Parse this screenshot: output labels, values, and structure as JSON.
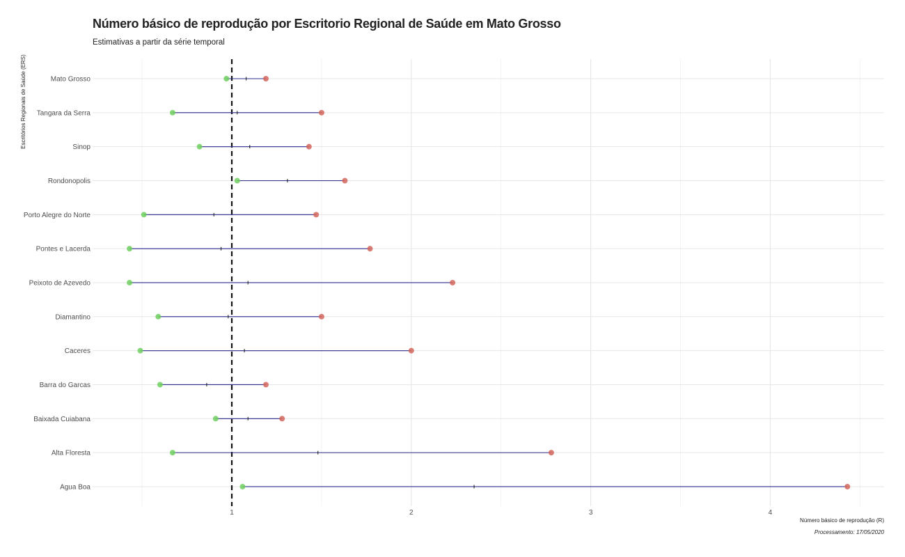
{
  "chart_data": {
    "type": "interval",
    "title": "Número básico de reprodução por Escritorio Regional de Saúde em Mato Grosso",
    "subtitle": "Estimativas a partir da série temporal",
    "xlabel": "Número básico de reprodução (R)",
    "ylabel": "Escritórios Regionais de Saúde (ERS)",
    "caption": "Processamento:  17/05/2020",
    "xlim": [
      0.25,
      4.65
    ],
    "xticks": [
      1,
      2,
      3,
      4
    ],
    "reference_line": 1,
    "grid": true,
    "colors": {
      "lower": "#6fcf5e",
      "upper": "#d2665c",
      "segment": "#2b2b8c",
      "reference": "#111111"
    },
    "series": [
      {
        "name": "Mato Grosso",
        "lower": 0.97,
        "estimate": 1.08,
        "upper": 1.19
      },
      {
        "name": "Tangara da Serra",
        "lower": 0.67,
        "estimate": 1.03,
        "upper": 1.5
      },
      {
        "name": "Sinop",
        "lower": 0.82,
        "estimate": 1.1,
        "upper": 1.43
      },
      {
        "name": "Rondonopolis",
        "lower": 1.03,
        "estimate": 1.31,
        "upper": 1.63
      },
      {
        "name": "Porto Alegre do Norte",
        "lower": 0.51,
        "estimate": 0.9,
        "upper": 1.47
      },
      {
        "name": "Pontes e Lacerda",
        "lower": 0.43,
        "estimate": 0.94,
        "upper": 1.77
      },
      {
        "name": "Peixoto de Azevedo",
        "lower": 0.43,
        "estimate": 1.09,
        "upper": 2.23
      },
      {
        "name": "Diamantino",
        "lower": 0.59,
        "estimate": 0.98,
        "upper": 1.5
      },
      {
        "name": "Caceres",
        "lower": 0.49,
        "estimate": 1.07,
        "upper": 2.0
      },
      {
        "name": "Barra do Garcas",
        "lower": 0.6,
        "estimate": 0.86,
        "upper": 1.19
      },
      {
        "name": "Baixada Cuiabana",
        "lower": 0.91,
        "estimate": 1.09,
        "upper": 1.28
      },
      {
        "name": "Alta Floresta",
        "lower": 0.67,
        "estimate": 1.48,
        "upper": 2.78
      },
      {
        "name": "Agua Boa",
        "lower": 1.06,
        "estimate": 2.35,
        "upper": 4.43
      }
    ]
  }
}
